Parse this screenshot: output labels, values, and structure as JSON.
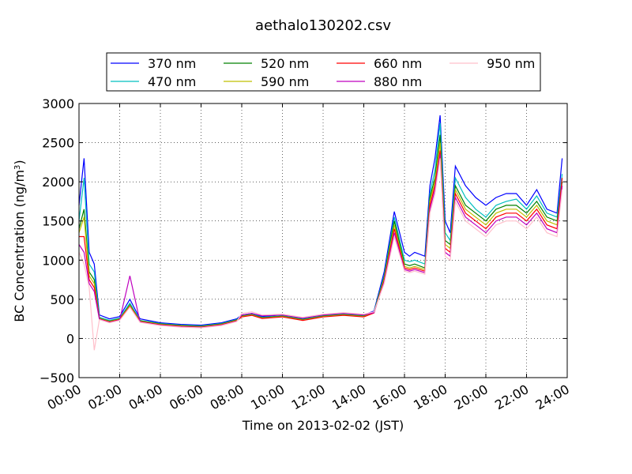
{
  "chart_data": {
    "type": "line",
    "title": "aethalo130202.csv",
    "xlabel": "Time on 2013-02-02 (JST)",
    "ylabel": "BC Concentration (ng/m",
    "ylabel_sup": "3",
    "ylabel_tail": ")",
    "xlim": [
      "00:00",
      "24:00"
    ],
    "ylim": [
      -500,
      3000
    ],
    "x_ticks": [
      "00:00",
      "02:00",
      "04:00",
      "06:00",
      "08:00",
      "10:00",
      "12:00",
      "14:00",
      "16:00",
      "18:00",
      "20:00",
      "22:00",
      "24:00"
    ],
    "y_ticks": [
      "−500",
      "0",
      "500",
      "1000",
      "1500",
      "2000",
      "2500",
      "3000"
    ],
    "grid": true,
    "legend_position": "top-center, above plot, 4 columns",
    "x_hours": [
      0,
      0.25,
      0.5,
      0.75,
      1,
      1.5,
      2,
      2.5,
      3,
      4,
      5,
      6,
      7,
      7.75,
      8,
      8.5,
      9,
      10,
      11,
      12,
      13,
      14,
      14.5,
      15,
      15.5,
      16,
      16.25,
      16.5,
      17,
      17.25,
      17.5,
      17.75,
      18,
      18.25,
      18.5,
      19,
      19.5,
      20,
      20.5,
      21,
      21.5,
      22,
      22.5,
      23,
      23.5,
      23.75
    ],
    "series": [
      {
        "name": "370 nm",
        "color": "#0000ff",
        "values": [
          1700,
          2300,
          1100,
          950,
          300,
          250,
          280,
          500,
          250,
          200,
          180,
          170,
          200,
          250,
          300,
          320,
          280,
          300,
          250,
          300,
          320,
          300,
          350,
          850,
          1620,
          1100,
          1050,
          1100,
          1050,
          1950,
          2300,
          2850,
          1500,
          1350,
          2200,
          1950,
          1800,
          1700,
          1800,
          1850,
          1850,
          1700,
          1900,
          1650,
          1600,
          2300
        ]
      },
      {
        "name": "470 nm",
        "color": "#00bfbf",
        "values": [
          1500,
          2050,
          950,
          850,
          270,
          230,
          260,
          450,
          230,
          190,
          170,
          160,
          190,
          240,
          290,
          310,
          270,
          290,
          245,
          290,
          310,
          290,
          340,
          800,
          1550,
          1000,
          980,
          1000,
          950,
          1850,
          2150,
          2750,
          1350,
          1250,
          2050,
          1800,
          1650,
          1550,
          1700,
          1750,
          1780,
          1650,
          1820,
          1600,
          1550,
          2100
        ]
      },
      {
        "name": "520 nm",
        "color": "#008000",
        "values": [
          1400,
          1650,
          850,
          750,
          260,
          220,
          250,
          430,
          225,
          185,
          165,
          155,
          185,
          235,
          285,
          305,
          265,
          285,
          240,
          285,
          305,
          285,
          335,
          780,
          1500,
          950,
          930,
          950,
          900,
          1800,
          2050,
          2600,
          1250,
          1200,
          1950,
          1700,
          1600,
          1500,
          1650,
          1700,
          1700,
          1600,
          1750,
          1550,
          1500,
          2000
        ]
      },
      {
        "name": "590 nm",
        "color": "#bfbf00",
        "values": [
          1350,
          1550,
          800,
          700,
          255,
          215,
          245,
          420,
          220,
          180,
          160,
          150,
          180,
          230,
          280,
          300,
          260,
          280,
          235,
          280,
          300,
          280,
          330,
          760,
          1450,
          920,
          900,
          920,
          880,
          1750,
          2000,
          2500,
          1200,
          1150,
          1900,
          1650,
          1550,
          1450,
          1600,
          1650,
          1650,
          1550,
          1700,
          1500,
          1450,
          1950
        ]
      },
      {
        "name": "660 nm",
        "color": "#ff0000",
        "values": [
          1300,
          1300,
          750,
          650,
          250,
          210,
          240,
          410,
          215,
          175,
          155,
          145,
          175,
          225,
          275,
          295,
          255,
          275,
          230,
          275,
          295,
          275,
          325,
          740,
          1400,
          900,
          880,
          900,
          860,
          1700,
          1950,
          2400,
          1150,
          1100,
          1850,
          1600,
          1500,
          1400,
          1550,
          1600,
          1600,
          1500,
          1650,
          1450,
          1400,
          2050
        ]
      },
      {
        "name": "880 nm",
        "color": "#bf00bf",
        "values": [
          1200,
          1100,
          700,
          600,
          245,
          205,
          235,
          800,
          210,
          170,
          150,
          140,
          170,
          220,
          300,
          320,
          290,
          300,
          260,
          300,
          320,
          300,
          330,
          720,
          1350,
          880,
          860,
          880,
          840,
          1650,
          1900,
          2350,
          1100,
          1050,
          1800,
          1550,
          1450,
          1350,
          1500,
          1550,
          1550,
          1450,
          1600,
          1400,
          1350,
          1950
        ]
      },
      {
        "name": "950 nm",
        "color": "#ffc0cb",
        "values": [
          1100,
          950,
          650,
          -150,
          240,
          200,
          230,
          400,
          205,
          165,
          145,
          135,
          165,
          215,
          320,
          340,
          300,
          310,
          270,
          310,
          330,
          310,
          340,
          700,
          1300,
          860,
          840,
          860,
          820,
          1600,
          1850,
          2300,
          1050,
          1000,
          1750,
          1500,
          1400,
          1300,
          1450,
          1500,
          1500,
          1400,
          1550,
          1350,
          1300,
          1900
        ]
      }
    ]
  }
}
